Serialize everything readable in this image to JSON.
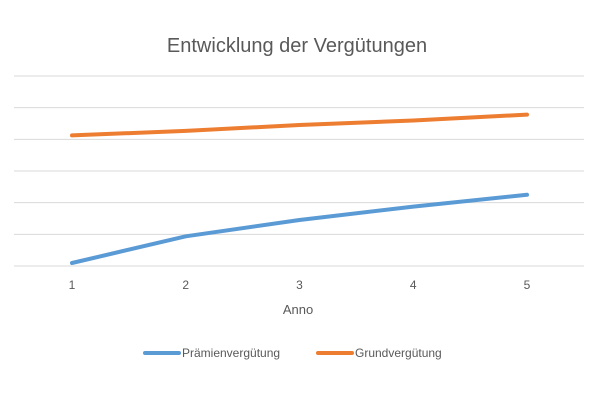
{
  "chart_data": {
    "type": "line",
    "title": "Entwicklung der Vergütungen",
    "xlabel": "Anno",
    "ylabel": "",
    "x": [
      1,
      2,
      3,
      4,
      5
    ],
    "ylim": [
      0,
      6.4
    ],
    "gridlines": 7,
    "y_tick_labels_shown": false,
    "legend_position": "bottom",
    "series": [
      {
        "name": "Prämienvergütung",
        "color": "#5B9BD5",
        "values": [
          0.1,
          1.0,
          1.55,
          2.0,
          2.4
        ]
      },
      {
        "name": "Grundvergütung",
        "color": "#ED7D31",
        "values": [
          4.4,
          4.55,
          4.75,
          4.9,
          5.1
        ]
      }
    ]
  }
}
